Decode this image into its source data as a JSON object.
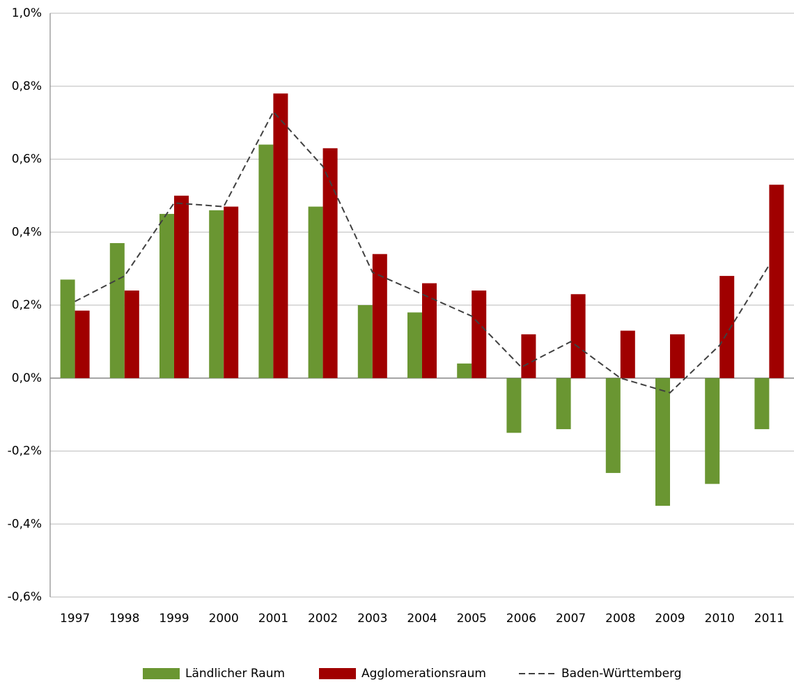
{
  "chart_data": {
    "type": "bar",
    "categories": [
      "1997",
      "1998",
      "1999",
      "2000",
      "2001",
      "2002",
      "2003",
      "2004",
      "2005",
      "2006",
      "2007",
      "2008",
      "2009",
      "2010",
      "2011"
    ],
    "series": [
      {
        "name": "Ländlicher Raum",
        "color": "#6a9632",
        "values": [
          0.27,
          0.37,
          0.45,
          0.46,
          0.64,
          0.47,
          0.2,
          0.18,
          0.04,
          -0.15,
          -0.14,
          -0.26,
          -0.35,
          -0.29,
          -0.14
        ]
      },
      {
        "name": "Agglomerationsraum",
        "color": "#a00000",
        "values": [
          0.185,
          0.24,
          0.5,
          0.47,
          0.78,
          0.63,
          0.34,
          0.26,
          0.24,
          0.12,
          0.23,
          0.13,
          0.12,
          0.28,
          0.53
        ]
      },
      {
        "name": "Baden-Württemberg",
        "color": "#404040",
        "type": "line",
        "line_style": "dashed",
        "values": [
          0.21,
          0.28,
          0.48,
          0.47,
          0.73,
          0.58,
          0.29,
          0.23,
          0.17,
          0.03,
          0.1,
          0.0,
          -0.04,
          0.09,
          0.31
        ]
      }
    ],
    "ylim": [
      -0.6,
      1.0
    ],
    "yticks": [
      {
        "value": -0.6,
        "label": "-0,6%"
      },
      {
        "value": -0.4,
        "label": "-0,4%"
      },
      {
        "value": -0.2,
        "label": "-0,2%"
      },
      {
        "value": 0,
        "label": "0,0%"
      },
      {
        "value": 0.2,
        "label": "0,2%"
      },
      {
        "value": 0.4,
        "label": "0,4%"
      },
      {
        "value": 0.6,
        "label": "0,6%"
      },
      {
        "value": 0.8,
        "label": "0,8%"
      },
      {
        "value": 1.0,
        "label": "1,0%"
      }
    ],
    "grid": true,
    "legend": "bottom"
  }
}
